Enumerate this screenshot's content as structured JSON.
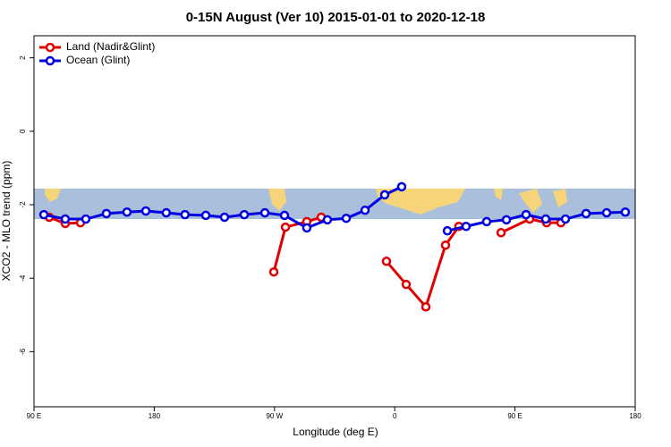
{
  "chart_data": {
    "type": "line",
    "title": "0-15N August (Ver 10)   2015-01-01 to 2020-12-18",
    "x_label": "Longitude (deg E)",
    "y_label": "XCO2 - MLO trend (ppm)",
    "xlim": [
      90,
      540
    ],
    "ylim": [
      -7.5,
      2.6
    ],
    "xticks": [
      {
        "value": 90,
        "label": "90 E"
      },
      180,
      {
        "value": 270,
        "label": "90 W"
      },
      {
        "value": 360,
        "label": "0"
      },
      {
        "value": 450,
        "label": "90 E"
      },
      {
        "value": 540,
        "label": "180"
      }
    ],
    "yticks": [
      2,
      0,
      -2,
      -4,
      -6
    ],
    "legend": "top-left",
    "series": [
      {
        "name": "Land (Nadir&Glint)",
        "color": "#e00000",
        "x": [
          101.4,
          113.4,
          124.8,
          null,
          269.5,
          278.2,
          294.2,
          305,
          null,
          353.8,
          368.6,
          383.3,
          398,
          408,
          null,
          439.6,
          461,
          473.7,
          484.4
        ],
        "values": [
          -2.34,
          -2.51,
          -2.49,
          null,
          -3.83,
          -2.61,
          -2.46,
          -2.34,
          null,
          -3.54,
          -4.17,
          -4.78,
          -3.1,
          -2.59,
          null,
          -2.76,
          -2.39,
          -2.49,
          -2.49
        ]
      },
      {
        "name": "Ocean (Glint)",
        "color": "#0000e0",
        "x": [
          97.4,
          113.4,
          128.8,
          144.2,
          159.6,
          173.7,
          189,
          203,
          218.6,
          232.6,
          247.4,
          262.8,
          277.5,
          294.2,
          309.6,
          323.7,
          337.8,
          352.5,
          365.2,
          null,
          399.4,
          413.4,
          428.8,
          443.6,
          458.3,
          473,
          487.8,
          503.2,
          518.6,
          532.6
        ],
        "values": [
          -2.27,
          -2.39,
          -2.39,
          -2.24,
          -2.2,
          -2.17,
          -2.22,
          -2.27,
          -2.29,
          -2.34,
          -2.27,
          -2.22,
          -2.29,
          -2.63,
          -2.41,
          -2.37,
          -2.15,
          -1.73,
          -1.51,
          null,
          -2.71,
          -2.59,
          -2.46,
          -2.41,
          -2.27,
          -2.39,
          -2.39,
          -2.24,
          -2.22,
          -2.2
        ]
      }
    ]
  }
}
